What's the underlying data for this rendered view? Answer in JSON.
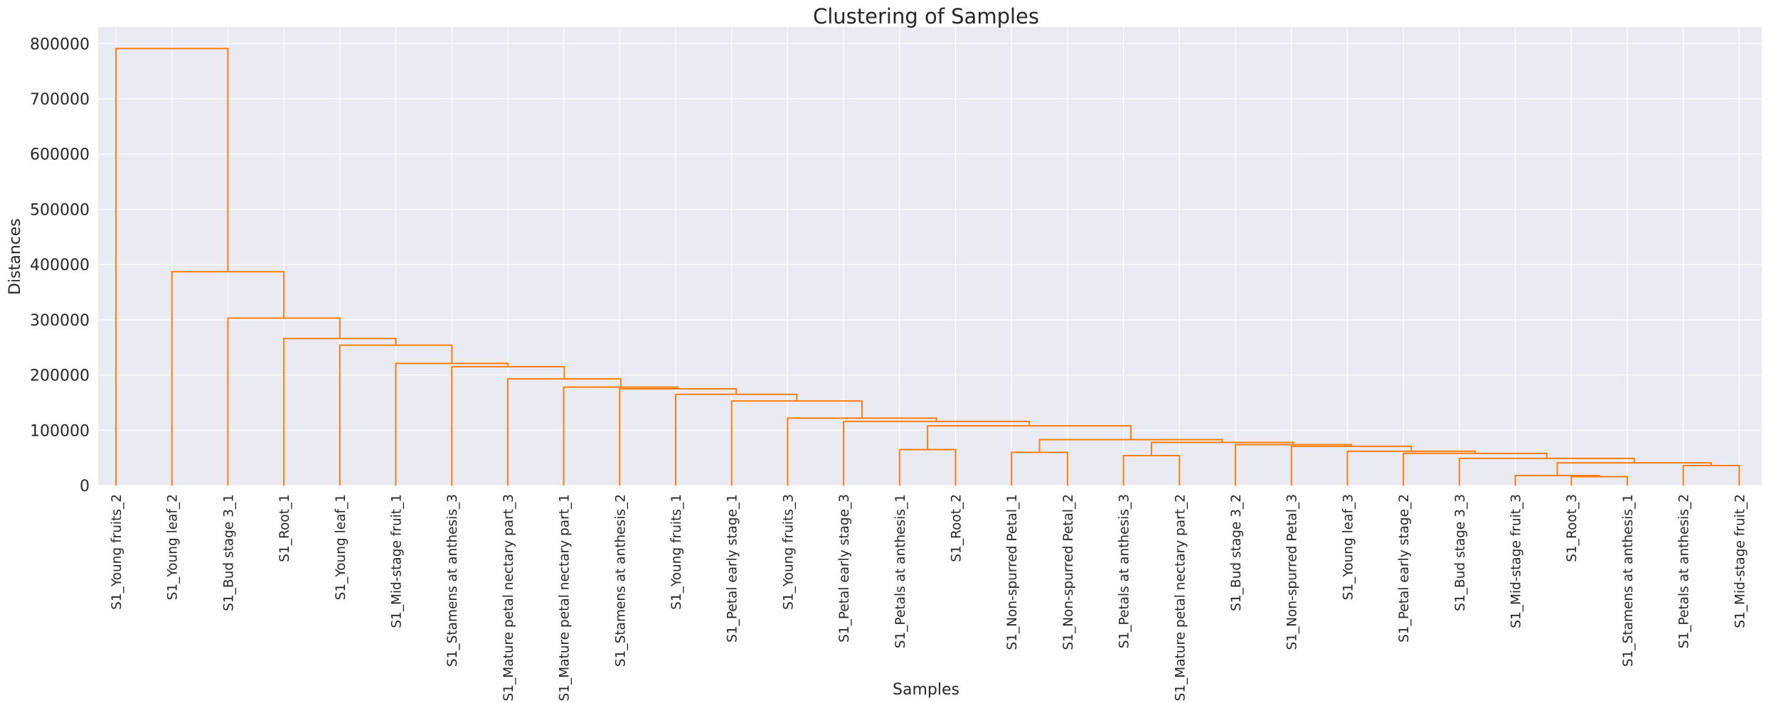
{
  "chart_data": {
    "type": "dendrogram",
    "title": "Clustering of Samples",
    "xlabel": "Samples",
    "ylabel": "Distances",
    "ylim": [
      0,
      830000
    ],
    "yticks": [
      0,
      100000,
      200000,
      300000,
      400000,
      500000,
      600000,
      700000,
      800000
    ],
    "ytick_labels": [
      "0",
      "100000",
      "200000",
      "300000",
      "400000",
      "500000",
      "600000",
      "700000",
      "800000"
    ],
    "grid": true,
    "link_color": "#ff7f0e",
    "background_color": "#eaeaf2",
    "grid_color": "#ffffff",
    "leaves": [
      "S1_Young fruits_2",
      "S1_Young leaf_2",
      "S1_Bud stage 3_1",
      "S1_Root_1",
      "S1_Young leaf_1",
      "S1_Mid-stage fruit_1",
      "S1_Stamens at anthesis_3",
      "S1_Mature petal nectary part_3",
      "S1_Mature petal nectary part_1",
      "S1_Stamens at anthesis_2",
      "S1_Young fruits_1",
      "S1_Petal early stage_1",
      "S1_Young fruits_3",
      "S1_Petal early stage_3",
      "S1_Petals at anthesis_1",
      "S1_Root_2",
      "S1_Non-spurred Petal_1",
      "S1_Non-spurred Petal_2",
      "S1_Petals at anthesis_3",
      "S1_Mature petal nectary part_2",
      "S1_Bud stage 3_2",
      "S1_Non-spurred Petal_3",
      "S1_Young leaf_3",
      "S1_Petal early stage_2",
      "S1_Bud stage 3_3",
      "S1_Mid-stage fruit_3",
      "S1_Root_3",
      "S1_Stamens at anthesis_1",
      "S1_Petals at anthesis_2",
      "S1_Mid-stage fruit_2"
    ],
    "merges": [
      {
        "a": "L14",
        "b": "L15",
        "height": 65000
      },
      {
        "a": "L16",
        "b": "L17",
        "height": 60000
      },
      {
        "a": "L18",
        "b": "L19",
        "height": 54000
      },
      {
        "a": "L26",
        "b": "L27",
        "height": 16000
      },
      {
        "a": "L25",
        "b": "M3",
        "height": 18000
      },
      {
        "a": "L28",
        "b": "L29",
        "height": 36000
      },
      {
        "a": "M4",
        "b": "M5",
        "height": 41000
      },
      {
        "a": "L24",
        "b": "M6",
        "height": 49000
      },
      {
        "a": "L23",
        "b": "M7",
        "height": 58000
      },
      {
        "a": "L22",
        "b": "M8",
        "height": 62000
      },
      {
        "a": "L21",
        "b": "M9",
        "height": 71000
      },
      {
        "a": "L20",
        "b": "M10",
        "height": 74000
      },
      {
        "a": "M2",
        "b": "M11",
        "height": 78000
      },
      {
        "a": "M1",
        "b": "M12",
        "height": 83000
      },
      {
        "a": "M0",
        "b": "M13",
        "height": 108000
      },
      {
        "a": "L13",
        "b": "M14",
        "height": 116000
      },
      {
        "a": "L12",
        "b": "M15",
        "height": 122000
      },
      {
        "a": "L11",
        "b": "M16",
        "height": 153000
      },
      {
        "a": "L10",
        "b": "M17",
        "height": 165000
      },
      {
        "a": "L9",
        "b": "M18",
        "height": 175000
      },
      {
        "a": "L8",
        "b": "M19",
        "height": 178000
      },
      {
        "a": "L7",
        "b": "M20",
        "height": 193000
      },
      {
        "a": "L6",
        "b": "M21",
        "height": 215000
      },
      {
        "a": "L5",
        "b": "M22",
        "height": 221000
      },
      {
        "a": "L4",
        "b": "M23",
        "height": 254000
      },
      {
        "a": "L3",
        "b": "M24",
        "height": 266000
      },
      {
        "a": "L2",
        "b": "M25",
        "height": 303000
      },
      {
        "a": "L1",
        "b": "M26",
        "height": 387000
      },
      {
        "a": "L0",
        "b": "M27",
        "height": 791000
      }
    ]
  }
}
